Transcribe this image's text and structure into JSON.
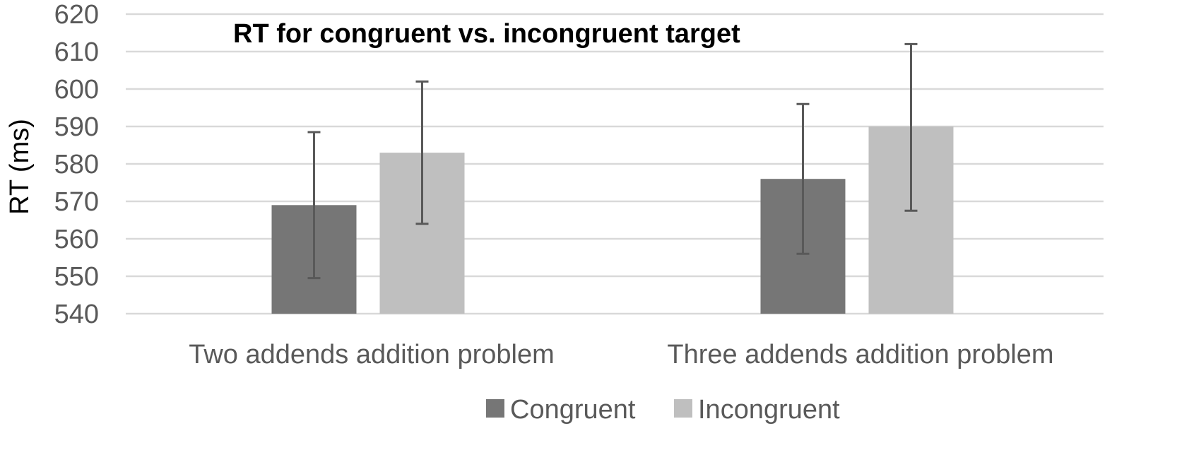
{
  "chart_data": {
    "type": "bar",
    "title": "RT for congruent vs. incongruent target",
    "xlabel": "",
    "ylabel": "RT (ms)",
    "ylim": [
      540,
      620
    ],
    "yticks": [
      540,
      550,
      560,
      570,
      580,
      590,
      600,
      610,
      620
    ],
    "grid": true,
    "legend_position": "bottom",
    "categories": [
      "Two addends addition problem",
      "Three addends addition problem"
    ],
    "series": [
      {
        "name": "Congruent",
        "color": "#767676",
        "values": [
          569,
          576
        ],
        "error_low": [
          549.5,
          556
        ],
        "error_high": [
          588.5,
          596
        ]
      },
      {
        "name": "Incongruent",
        "color": "#bfbfbf",
        "values": [
          583,
          590
        ],
        "error_low": [
          564,
          567.5
        ],
        "error_high": [
          602,
          612
        ]
      }
    ]
  }
}
